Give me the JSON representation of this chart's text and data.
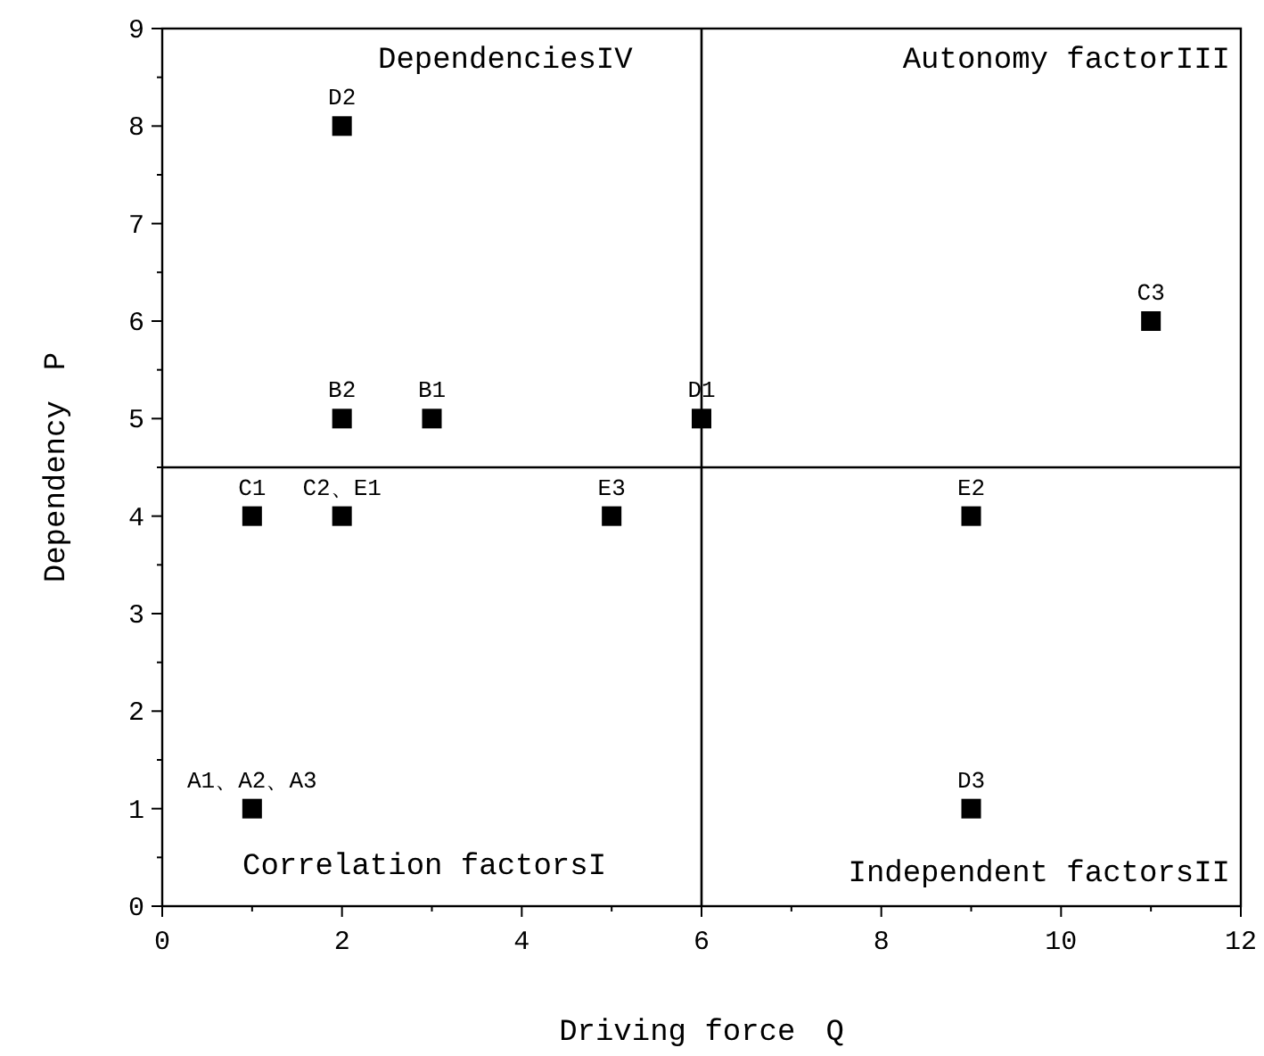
{
  "chart_data": {
    "type": "scatter",
    "xlabel": "Driving force　Q",
    "ylabel": "Dependency　P",
    "x": [
      1,
      2,
      3,
      1,
      2,
      11,
      2,
      6,
      9,
      9,
      5
    ],
    "values": [
      1,
      5,
      5,
      4,
      4,
      6,
      8,
      5,
      1,
      4,
      4
    ],
    "color": "#000000",
    "marker": "square",
    "xlim": [
      0,
      12
    ],
    "xticks": [
      0,
      2,
      4,
      6,
      8,
      10,
      12
    ],
    "ylim": [
      0,
      9
    ],
    "yticks": [
      0,
      1,
      2,
      3,
      4,
      5,
      6,
      7,
      8,
      9
    ],
    "ref_lines": [
      {
        "axis": "x",
        "value": 6,
        "color": "#000000"
      },
      {
        "axis": "y",
        "value": 4.5,
        "color": "#000000"
      }
    ],
    "annotations": [
      "DependenciesIV",
      "Autonomy factorIII",
      "Correlation factorsI",
      "Independent factorsII",
      {
        "text": "A1、A2、A3",
        "x": 1,
        "y": 1
      },
      {
        "text": "B2",
        "x": 2,
        "y": 5
      },
      {
        "text": "B1",
        "x": 3,
        "y": 5
      },
      {
        "text": "C1",
        "x": 1,
        "y": 4
      },
      {
        "text": "C2、E1",
        "x": 2,
        "y": 4
      },
      {
        "text": "C3",
        "x": 11,
        "y": 6
      },
      {
        "text": "D2",
        "x": 2,
        "y": 8
      },
      {
        "text": "D1",
        "x": 6,
        "y": 5
      },
      {
        "text": "D3",
        "x": 9,
        "y": 1
      },
      {
        "text": "E2",
        "x": 9,
        "y": 4
      },
      {
        "text": "E3",
        "x": 5,
        "y": 4
      }
    ]
  }
}
